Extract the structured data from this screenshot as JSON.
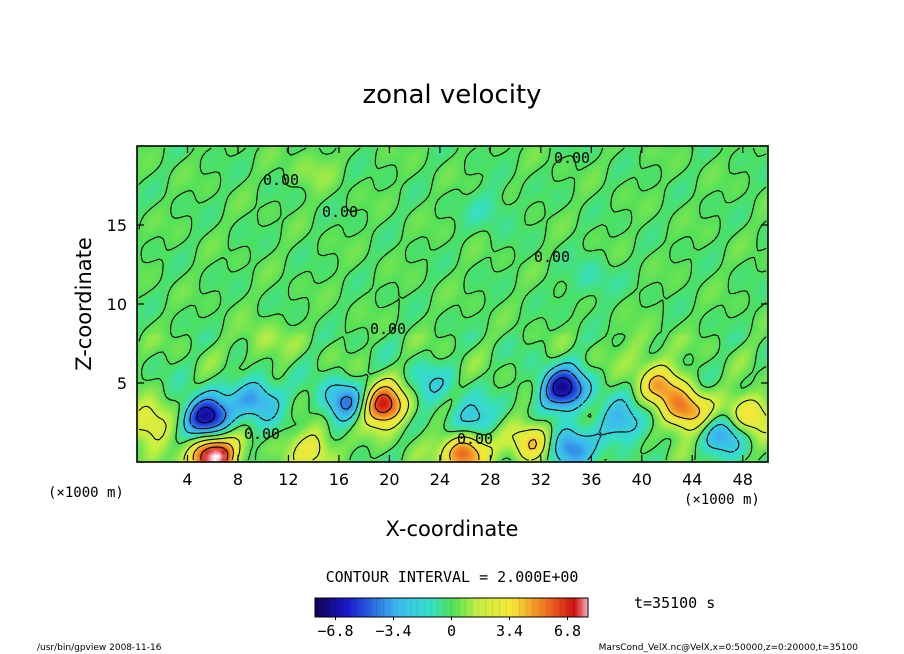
{
  "chart_data": {
    "type": "heatmap",
    "title": "zonal velocity",
    "xlabel": "X-coordinate",
    "ylabel": "Z-coordinate",
    "x_unit": "(×1000 m)",
    "y_unit": "(×1000 m)",
    "xlim": [
      0,
      50
    ],
    "ylim": [
      0,
      20
    ],
    "x_ticks": [
      4,
      8,
      12,
      16,
      20,
      24,
      28,
      32,
      36,
      40,
      44,
      48
    ],
    "y_ticks": [
      5,
      10,
      15
    ],
    "contour_labels": [
      "0.00",
      "0.00",
      "0.00",
      "0.00",
      "0.00",
      "0.00",
      "0.00"
    ],
    "contour_interval_text": "CONTOUR INTERVAL = 2.000E+00",
    "time_text": "t=35100 s",
    "colorbar": {
      "ticks": [
        "−6.8",
        "−3.4",
        "0",
        "3.4",
        "6.8"
      ],
      "range": [
        -8,
        8
      ]
    },
    "features": [
      {
        "x": 5.5,
        "z": 2.8,
        "value": -7.5
      },
      {
        "x": 9.5,
        "z": 4.0,
        "value": -4.0
      },
      {
        "x": 6.0,
        "z": 0.4,
        "value": 9.0
      },
      {
        "x": 1.0,
        "z": 2.5,
        "value": 3.5
      },
      {
        "x": 19.5,
        "z": 3.6,
        "value": 7.5
      },
      {
        "x": 16.5,
        "z": 3.8,
        "value": -4.5
      },
      {
        "x": 14.0,
        "z": 0.8,
        "value": 3.0
      },
      {
        "x": 26.0,
        "z": 0.6,
        "value": 6.5
      },
      {
        "x": 26.5,
        "z": 2.6,
        "value": -3.0
      },
      {
        "x": 33.8,
        "z": 4.6,
        "value": -7.0
      },
      {
        "x": 34.0,
        "z": 0.8,
        "value": -5.0
      },
      {
        "x": 31.5,
        "z": 1.2,
        "value": 4.5
      },
      {
        "x": 38.5,
        "z": 2.5,
        "value": -3.5
      },
      {
        "x": 41.5,
        "z": 4.8,
        "value": 4.0
      },
      {
        "x": 43.5,
        "z": 3.2,
        "value": 5.5
      },
      {
        "x": 48.5,
        "z": 3.0,
        "value": 4.0
      },
      {
        "x": 46.5,
        "z": 1.8,
        "value": -3.5
      },
      {
        "x": 23.0,
        "z": 4.8,
        "value": -1.8
      },
      {
        "x": 10.0,
        "z": 7.5,
        "value": 1.2
      },
      {
        "x": 40.0,
        "z": 7.0,
        "value": 1.0
      },
      {
        "x": 28.0,
        "z": 16.0,
        "value": -1.0
      },
      {
        "x": 14.0,
        "z": 18.5,
        "value": 0.8
      },
      {
        "x": 36.0,
        "z": 11.5,
        "value": -1.0
      }
    ]
  },
  "footer": {
    "left": "/usr/bin/gpview   2008-11-16",
    "right": "MarsCond_VelX.nc@VelX,x=0:50000,z=0:20000,t=35100"
  }
}
